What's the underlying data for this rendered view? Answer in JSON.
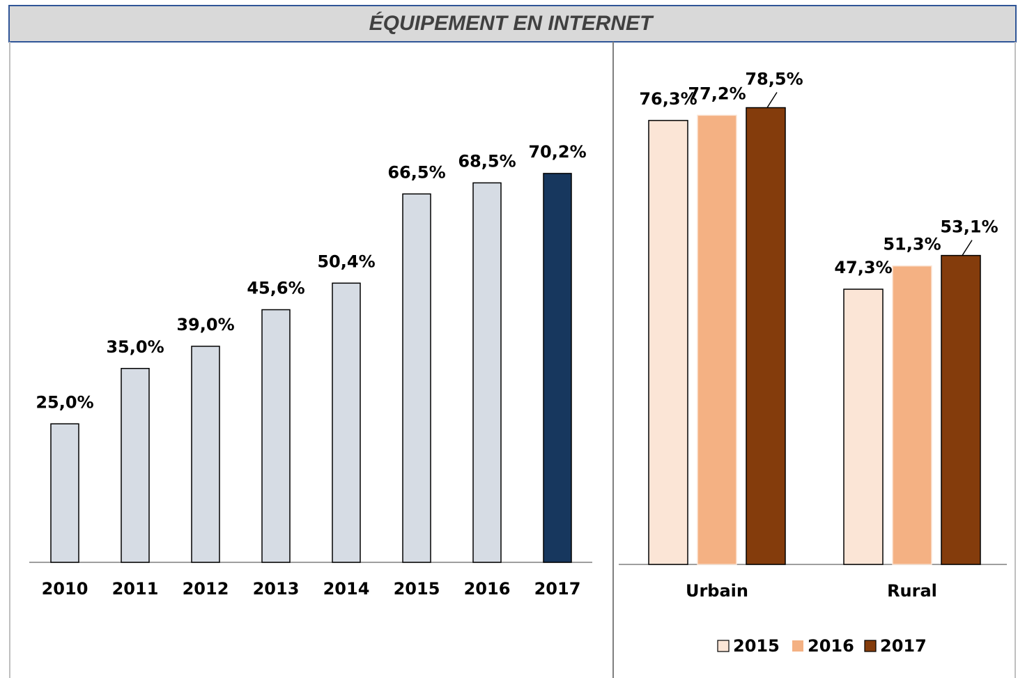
{
  "header": {
    "title": "ÉQUIPEMENT EN INTERNET"
  },
  "chart_data": [
    {
      "type": "bar",
      "categories": [
        "2010",
        "2011",
        "2012",
        "2013",
        "2014",
        "2015",
        "2016",
        "2017"
      ],
      "values": [
        25.0,
        35.0,
        39.0,
        45.6,
        50.4,
        66.5,
        68.5,
        70.2
      ],
      "value_labels": [
        "25,0%",
        "35,0%",
        "39,0%",
        "45,6%",
        "50,4%",
        "66,5%",
        "68,5%",
        "70,2%"
      ],
      "colors": [
        "#d6dce4",
        "#d6dce4",
        "#d6dce4",
        "#d6dce4",
        "#d6dce4",
        "#d6dce4",
        "#d6dce4",
        "#17375e"
      ]
    },
    {
      "type": "grouped_bar",
      "categories": [
        "Urbain",
        "Rural"
      ],
      "series": [
        {
          "name": "2015",
          "color": "#fbe5d6",
          "values": [
            76.3,
            47.3
          ],
          "value_labels": [
            "76,3%",
            "47,3%"
          ]
        },
        {
          "name": "2016",
          "color": "#f4b183",
          "values": [
            77.2,
            51.3
          ],
          "value_labels": [
            "77,2%",
            "51,3%"
          ]
        },
        {
          "name": "2017",
          "color": "#843c0c",
          "values": [
            78.5,
            53.1
          ],
          "value_labels": [
            "78,5%",
            "53,1%"
          ]
        }
      ],
      "legend": "bottom"
    }
  ]
}
